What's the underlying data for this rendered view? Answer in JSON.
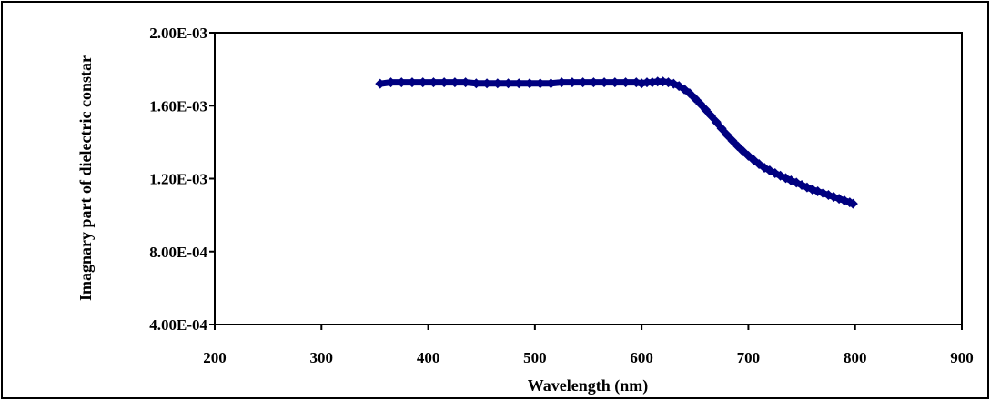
{
  "chart_data": {
    "type": "scatter",
    "title": "",
    "xlabel": "Wavelength (nm)",
    "ylabel": "Imagnary part of dielectric constar",
    "xlim": [
      200,
      900
    ],
    "ylim": [
      0.0004,
      0.002
    ],
    "x_ticks": [
      "200",
      "300",
      "400",
      "500",
      "600",
      "700",
      "800",
      "900"
    ],
    "y_ticks": [
      "4.00E-04",
      "8.00E-04",
      "1.20E-03",
      "1.60E-03",
      "2.00E-03"
    ],
    "grid": false,
    "legend": "none",
    "marker": "diamond",
    "series_color": "#000080",
    "series": [
      {
        "x": [
          355,
          365,
          375,
          385,
          395,
          405,
          415,
          425,
          435,
          445,
          455,
          465,
          475,
          485,
          495,
          505,
          515,
          525,
          535,
          545,
          555,
          565,
          575,
          585,
          595,
          600,
          605,
          610,
          615,
          620,
          625,
          630,
          635,
          640,
          645,
          650,
          655,
          660,
          665,
          670,
          675,
          680,
          685,
          690,
          695,
          700,
          705,
          710,
          715,
          720,
          725,
          730,
          735,
          740,
          745,
          750,
          755,
          760,
          765,
          770,
          775,
          780,
          785,
          790,
          795,
          798
        ],
        "y": [
          0.00172,
          0.001728,
          0.001728,
          0.001728,
          0.001728,
          0.001728,
          0.001728,
          0.001728,
          0.001728,
          0.001722,
          0.001722,
          0.001722,
          0.001722,
          0.001722,
          0.001722,
          0.001722,
          0.001722,
          0.001728,
          0.001728,
          0.001728,
          0.001728,
          0.001728,
          0.001728,
          0.001728,
          0.001728,
          0.001722,
          0.001728,
          0.001728,
          0.001732,
          0.001732,
          0.001728,
          0.00172,
          0.001708,
          0.00169,
          0.001668,
          0.00164,
          0.00161,
          0.001578,
          0.001545,
          0.00151,
          0.001475,
          0.00144,
          0.001408,
          0.001378,
          0.00135,
          0.001325,
          0.001302,
          0.00128,
          0.00126,
          0.001245,
          0.00123,
          0.001216,
          0.001203,
          0.00119,
          0.001178,
          0.001165,
          0.001152,
          0.00114,
          0.00113,
          0.00112,
          0.00111,
          0.0011,
          0.00109,
          0.00108,
          0.00107,
          0.001062
        ]
      }
    ]
  }
}
